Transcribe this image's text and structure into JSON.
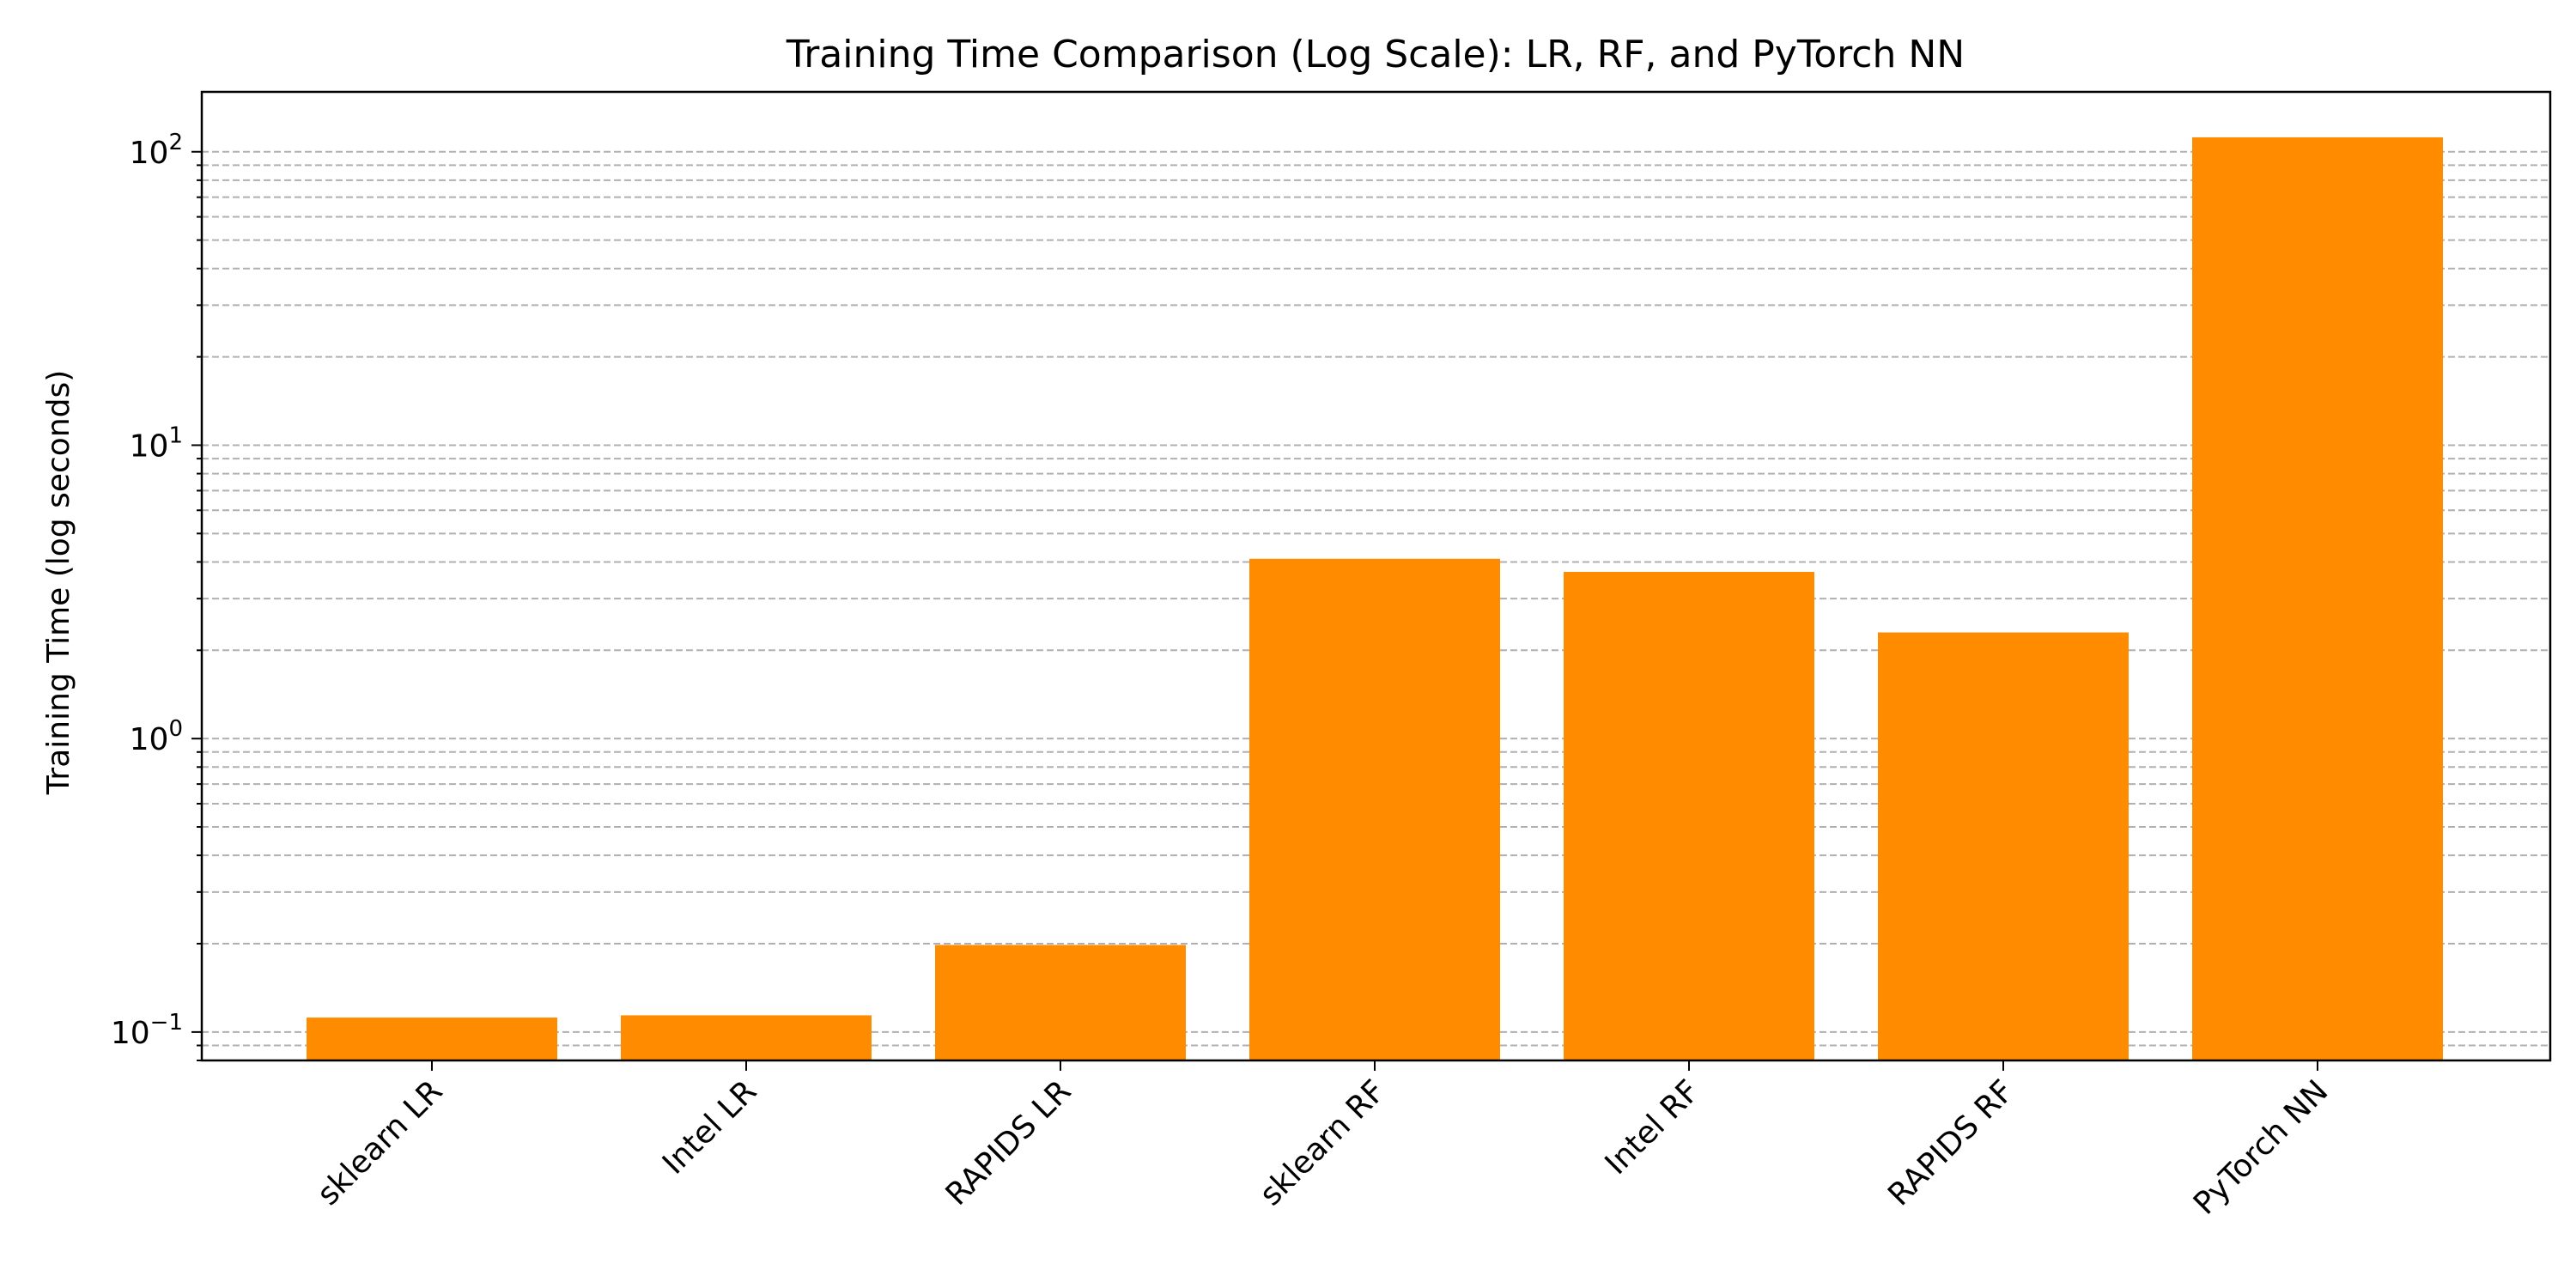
{
  "chart_data": {
    "type": "bar",
    "title": "Training Time Comparison (Log Scale): LR, RF, and PyTorch NN",
    "xlabel": "",
    "ylabel": "Training Time (log seconds)",
    "y_scale": "log",
    "ylim": [
      0.08,
      160
    ],
    "y_ticks": [
      {
        "value": 0.1,
        "base": "10",
        "exp": "−1"
      },
      {
        "value": 1,
        "base": "10",
        "exp": "0"
      },
      {
        "value": 10,
        "base": "10",
        "exp": "1"
      },
      {
        "value": 100,
        "base": "10",
        "exp": "2"
      }
    ],
    "categories": [
      "sklearn LR",
      "Intel LR",
      "RAPIDS LR",
      "sklearn RF",
      "Intel RF",
      "RAPIDS RF",
      "PyTorch NN"
    ],
    "values": [
      0.112,
      0.114,
      0.198,
      4.1,
      3.7,
      2.3,
      112
    ],
    "bar_color": "#ff8c00",
    "grid": {
      "axis": "y",
      "which": "both",
      "style": "dashed",
      "color": "#b0b0b0"
    },
    "x_tick_rotation": 45
  }
}
